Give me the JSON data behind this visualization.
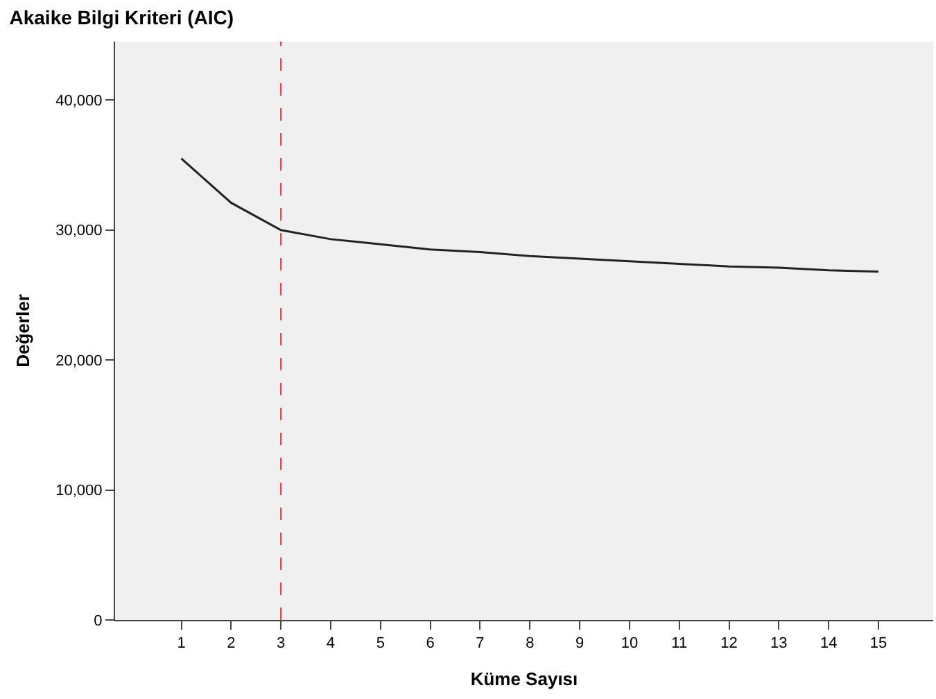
{
  "chart_data": {
    "type": "line",
    "title": "Akaike Bilgi Kriteri (AIC)",
    "xlabel": "Küme Sayısı",
    "ylabel": "Değerler",
    "x": [
      1,
      2,
      3,
      4,
      5,
      6,
      7,
      8,
      9,
      10,
      11,
      12,
      13,
      14,
      15
    ],
    "series": [
      {
        "color": "#222222",
        "values": [
          35500,
          32100,
          30000,
          29300,
          28900,
          28500,
          28300,
          28000,
          27800,
          27600,
          27400,
          27200,
          27100,
          26900,
          26800
        ]
      }
    ],
    "xlim": [
      -0.33,
      16.1
    ],
    "xticks": [
      1,
      2,
      3,
      4,
      5,
      6,
      7,
      8,
      9,
      10,
      11,
      12,
      13,
      14,
      15
    ],
    "ylim": [
      0,
      44500
    ],
    "yticks": [
      {
        "value": 0,
        "label": "0"
      },
      {
        "value": 10000,
        "label": "10,000"
      },
      {
        "value": 20000,
        "label": "20,000"
      },
      {
        "value": 30000,
        "label": "30,000"
      },
      {
        "value": 40000,
        "label": "40,000"
      }
    ],
    "ref_lines": [
      {
        "axis": "x",
        "value": 3,
        "color": "#e0303a",
        "line_style": "dashed"
      }
    ],
    "grid": false,
    "marker": "none",
    "line_style": "solid"
  }
}
